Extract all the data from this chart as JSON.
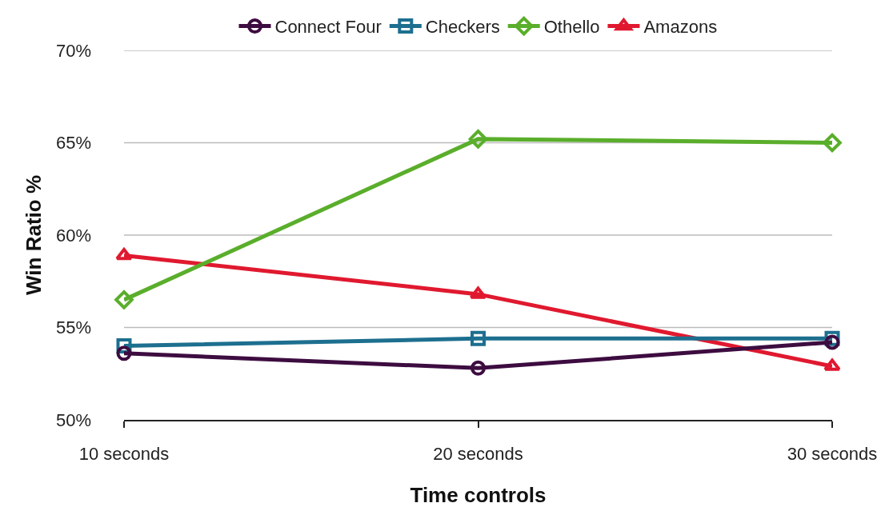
{
  "chart_data": {
    "type": "line",
    "xlabel": "Time controls",
    "ylabel": "Win Ratio %",
    "categories": [
      "10 seconds",
      "20 seconds",
      "30 seconds"
    ],
    "series": [
      {
        "name": "Connect Four",
        "color": "#3d0c40",
        "marker": "circle",
        "values": [
          53.6,
          52.8,
          54.2
        ]
      },
      {
        "name": "Checkers",
        "color": "#1d6f8f",
        "marker": "square",
        "values": [
          54.0,
          54.4,
          54.4
        ]
      },
      {
        "name": "Othello",
        "color": "#5aae2b",
        "marker": "diamond",
        "values": [
          56.5,
          65.2,
          65.0
        ]
      },
      {
        "name": "Amazons",
        "color": "#e0192f",
        "marker": "triangle",
        "values": [
          58.9,
          56.8,
          52.9
        ]
      }
    ],
    "ylim": [
      50,
      70
    ],
    "yticks": [
      {
        "value": 50,
        "label": "50%"
      },
      {
        "value": 55,
        "label": "55%"
      },
      {
        "value": 60,
        "label": "60%"
      },
      {
        "value": 65,
        "label": "65%"
      },
      {
        "value": 70,
        "label": "70%"
      }
    ],
    "grid": "y",
    "legend": "top",
    "line_style": "solid"
  }
}
